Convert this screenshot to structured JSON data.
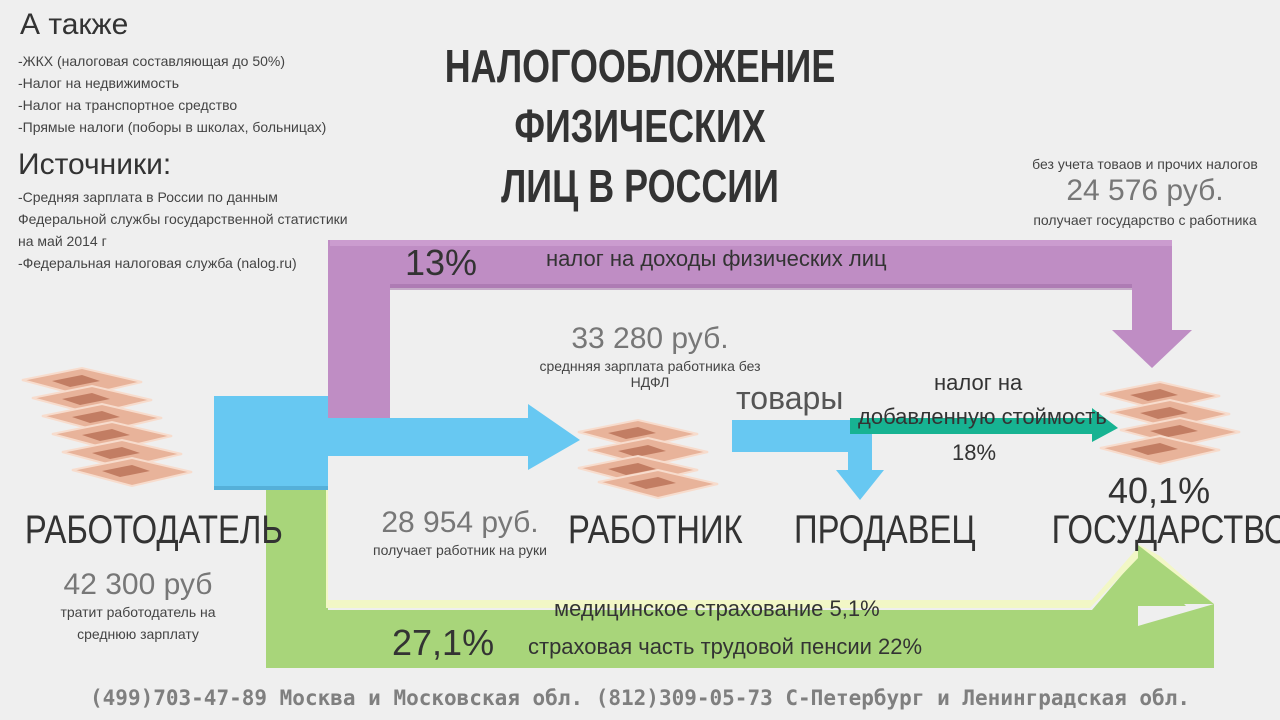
{
  "also": {
    "title": "А также",
    "items": [
      "-ЖКХ (налоговая составляющая до 50%)",
      "-Налог на недвижимость",
      "-Налог на транспортное средство",
      "-Прямые налоги (поборы в школах, больницах)"
    ]
  },
  "sources": {
    "title": "Источники:",
    "items": [
      "-Средняя зарплата в России по данным Федеральной службы государственной статистики на май 2014 г",
      "-Федеральная налоговая служба (nalog.ru)"
    ]
  },
  "main_title": {
    "line1": "НАЛОГООБЛОЖЕНИЕ ФИЗИЧЕСКИХ",
    "line2": "ЛИЦ В РОССИИ"
  },
  "state_income": {
    "note_top": "без учета товаов и прочих налогов",
    "amount": "24 576 руб.",
    "note_bottom": "получает государство с работника"
  },
  "ndfl": {
    "percent": "13%",
    "label": "налог на доходы физических лиц"
  },
  "avg_salary": {
    "amount": "33 280 руб.",
    "note": "среднняя зарплата работника без НДФЛ"
  },
  "goods": {
    "label": "товары"
  },
  "vat": {
    "line1": "налог на",
    "line2": "добавленную стоймость",
    "percent": "18%"
  },
  "state_share": "40,1%",
  "nodes": {
    "employer": "РАБОТОДАТЕЛЬ",
    "worker": "РАБОТНИК",
    "seller": "ПРОДАВЕЦ",
    "state": "ГОСУДАРСТВО"
  },
  "net_pay": {
    "amount": "28 954 руб.",
    "note": "получает работник на руки"
  },
  "employer_cost": {
    "amount": "42 300 руб",
    "note_line1": "тратит работодатель на",
    "note_line2": "среднюю зарплату"
  },
  "insurance": {
    "medical": "медицинское страхование 5,1%",
    "pension": "страховая часть трудовой пенсии 22%",
    "percent": "27,1%"
  },
  "contacts": "(499)703-47-89 Москва и Московская обл. (812)309-05-73 С-Петербург и Ленинградская обл.",
  "colors": {
    "purple": "#bf8dc4",
    "blue": "#67c8f2",
    "green": "#a8d57a",
    "light_green": "#f2f7c6",
    "teal": "#17b392"
  },
  "icons": [
    "money-stack-icon"
  ]
}
